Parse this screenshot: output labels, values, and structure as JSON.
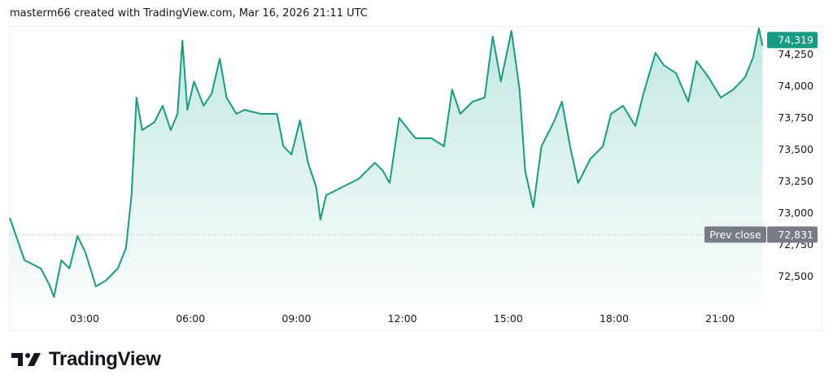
{
  "header": {
    "caption": "masterm66 created with TradingView.com, Mar 16, 2026 21:11 UTC"
  },
  "brand": {
    "name": "TradingView"
  },
  "colors": {
    "line": "#1a9a82",
    "fill": "#22ab94",
    "last_badge": "#1a9a82",
    "prev_close_badge": "#787b86"
  },
  "chart_data": {
    "type": "area",
    "x_ticks": [
      "03:00",
      "06:00",
      "09:00",
      "12:00",
      "15:00",
      "18:00",
      "21:00"
    ],
    "x_tick_hours": [
      3,
      6,
      9,
      12,
      15,
      18,
      21
    ],
    "y_ticks": [
      "72,500",
      "72,750",
      "73,000",
      "73,250",
      "73,500",
      "73,750",
      "74,000",
      "74,250"
    ],
    "y_tick_values": [
      72500,
      72750,
      73000,
      73250,
      73500,
      73750,
      74000,
      74250
    ],
    "grid": false,
    "last_price": {
      "label": "74,319",
      "value": 74319
    },
    "prev_close": {
      "label": "Prev close",
      "value_label": "72,831",
      "value": 72831
    },
    "series": {
      "x_hours": [
        0.88,
        1.06,
        1.3,
        1.53,
        1.76,
        2.0,
        2.13,
        2.34,
        2.57,
        2.8,
        3.02,
        3.32,
        3.6,
        3.94,
        4.17,
        4.33,
        4.47,
        4.63,
        4.98,
        5.21,
        5.44,
        5.63,
        5.77,
        5.91,
        6.1,
        6.37,
        6.6,
        6.83,
        7.02,
        7.3,
        7.53,
        7.99,
        8.45,
        8.63,
        8.86,
        9.1,
        9.33,
        9.56,
        9.68,
        9.84,
        10.3,
        10.76,
        11.22,
        11.45,
        11.64,
        11.91,
        12.37,
        12.83,
        13.18,
        13.41,
        13.64,
        13.99,
        14.33,
        14.56,
        14.79,
        15.09,
        15.32,
        15.48,
        15.71,
        15.94,
        16.29,
        16.52,
        16.75,
        16.98,
        17.33,
        17.68,
        17.91,
        18.25,
        18.6,
        18.83,
        19.17,
        19.4,
        19.75,
        20.1,
        20.33,
        20.67,
        21.02,
        21.37,
        21.71,
        21.94,
        22.1,
        22.2
      ],
      "values": [
        72962,
        72820,
        72628,
        72596,
        72564,
        72436,
        72340,
        72628,
        72564,
        72820,
        72692,
        72423,
        72468,
        72564,
        72724,
        73141,
        73910,
        73654,
        73718,
        73846,
        73654,
        73782,
        74359,
        73814,
        74038,
        73846,
        73942,
        74218,
        73910,
        73782,
        73814,
        73782,
        73782,
        73526,
        73462,
        73731,
        73397,
        73205,
        72949,
        73141,
        73205,
        73269,
        73397,
        73333,
        73237,
        73750,
        73590,
        73590,
        73526,
        73974,
        73782,
        73878,
        73910,
        74391,
        74038,
        74436,
        73974,
        73333,
        73045,
        73526,
        73718,
        73878,
        73526,
        73237,
        73429,
        73526,
        73782,
        73846,
        73686,
        73942,
        74263,
        74167,
        74103,
        73878,
        74199,
        74071,
        73910,
        73974,
        74071,
        74231,
        74455,
        74319
      ]
    }
  }
}
